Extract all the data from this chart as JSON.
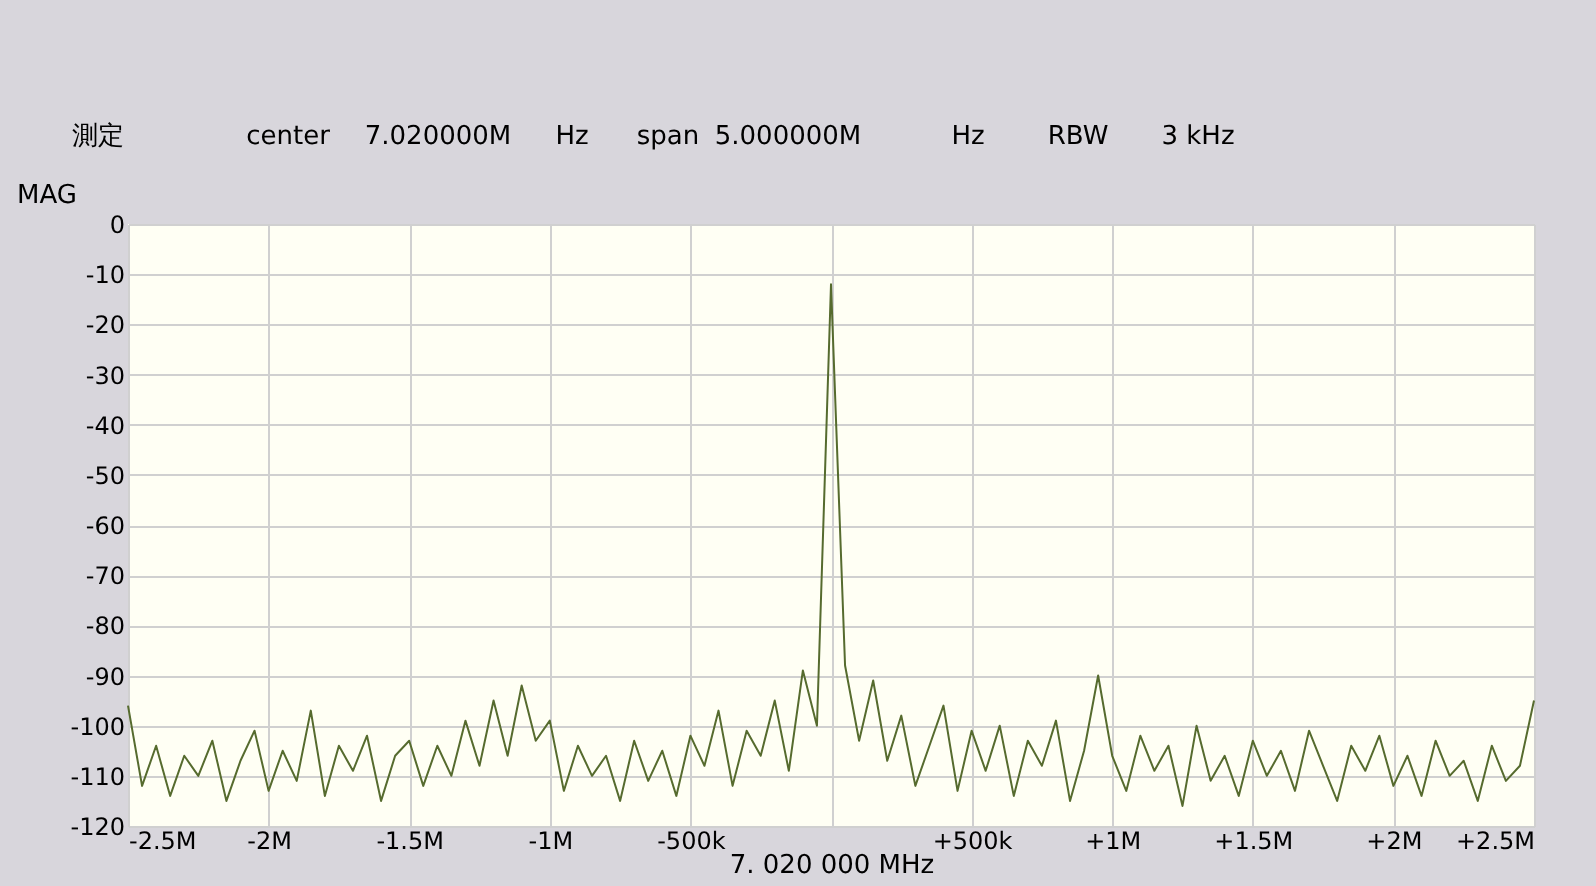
{
  "chart_data": {
    "type": "line",
    "xlabel": "7. 020 000 MHz",
    "ylabel": "MAG",
    "annotations": [
      "測定",
      "center",
      "7.020000M",
      "Hz",
      "span",
      "5.000000M",
      "Hz",
      "RBW",
      "3 kHz"
    ],
    "xlim": [
      -2500000,
      2500000
    ],
    "xticks": [
      {
        "value": -2500000,
        "label": "-2.5M"
      },
      {
        "value": -2000000,
        "label": "-2M"
      },
      {
        "value": -1500000,
        "label": "-1.5M"
      },
      {
        "value": -1000000,
        "label": "-1M"
      },
      {
        "value": -500000,
        "label": "-500k"
      },
      {
        "value": 0,
        "label": null
      },
      {
        "value": 500000,
        "label": "+500k"
      },
      {
        "value": 1000000,
        "label": "+1M"
      },
      {
        "value": 1500000,
        "label": "+1.5M"
      },
      {
        "value": 2000000,
        "label": "+2M"
      },
      {
        "value": 2500000,
        "label": "+2.5M"
      }
    ],
    "ylim": [
      -120,
      0
    ],
    "yticks": [
      0,
      -10,
      -20,
      -30,
      -40,
      -50,
      -60,
      -70,
      -80,
      -90,
      -100,
      -110,
      -120
    ],
    "grid": true,
    "marker": "none",
    "line_style": "solid",
    "x": [
      -2500000,
      -2450000,
      -2400000,
      -2350000,
      -2300000,
      -2250000,
      -2200000,
      -2150000,
      -2100000,
      -2050000,
      -2000000,
      -1950000,
      -1900000,
      -1850000,
      -1800000,
      -1750000,
      -1700000,
      -1650000,
      -1600000,
      -1550000,
      -1500000,
      -1450000,
      -1400000,
      -1350000,
      -1300000,
      -1250000,
      -1200000,
      -1150000,
      -1100000,
      -1050000,
      -1000000,
      -950000,
      -900000,
      -850000,
      -800000,
      -750000,
      -700000,
      -650000,
      -600000,
      -550000,
      -500000,
      -450000,
      -400000,
      -350000,
      -300000,
      -250000,
      -200000,
      -150000,
      -100000,
      -50000,
      0,
      50000,
      100000,
      150000,
      200000,
      250000,
      300000,
      350000,
      400000,
      450000,
      500000,
      550000,
      600000,
      650000,
      700000,
      750000,
      800000,
      850000,
      900000,
      950000,
      1000000,
      1050000,
      1100000,
      1150000,
      1200000,
      1250000,
      1300000,
      1350000,
      1400000,
      1450000,
      1500000,
      1550000,
      1600000,
      1650000,
      1700000,
      1750000,
      1800000,
      1850000,
      1900000,
      1950000,
      2000000,
      2050000,
      2100000,
      2150000,
      2200000,
      2250000,
      2300000,
      2350000,
      2400000,
      2450000,
      2500000
    ],
    "series": [
      {
        "color": "#566b2e",
        "values": [
          -96,
          -112,
          -104,
          -114,
          -106,
          -110,
          -103,
          -115,
          -107,
          -101,
          -113,
          -105,
          -111,
          -97,
          -114,
          -104,
          -109,
          -102,
          -115,
          -106,
          -103,
          -112,
          -104,
          -110,
          -99,
          -108,
          -95,
          -106,
          -92,
          -103,
          -99,
          -113,
          -104,
          -110,
          -106,
          -115,
          -103,
          -111,
          -105,
          -114,
          -102,
          -108,
          -97,
          -112,
          -101,
          -106,
          -95,
          -109,
          -89,
          -100,
          -12,
          -88,
          -103,
          -91,
          -107,
          -98,
          -112,
          -104,
          -96,
          -113,
          -101,
          -109,
          -100,
          -114,
          -103,
          -108,
          -99,
          -115,
          -105,
          -90,
          -106,
          -113,
          -102,
          -109,
          -104,
          -116,
          -100,
          -111,
          -106,
          -114,
          -103,
          -110,
          -105,
          -113,
          -101,
          -108,
          -115,
          -104,
          -109,
          -102,
          -112,
          -106,
          -114,
          -103,
          -110,
          -107,
          -115,
          -104,
          -111,
          -108,
          -95
        ]
      }
    ]
  }
}
